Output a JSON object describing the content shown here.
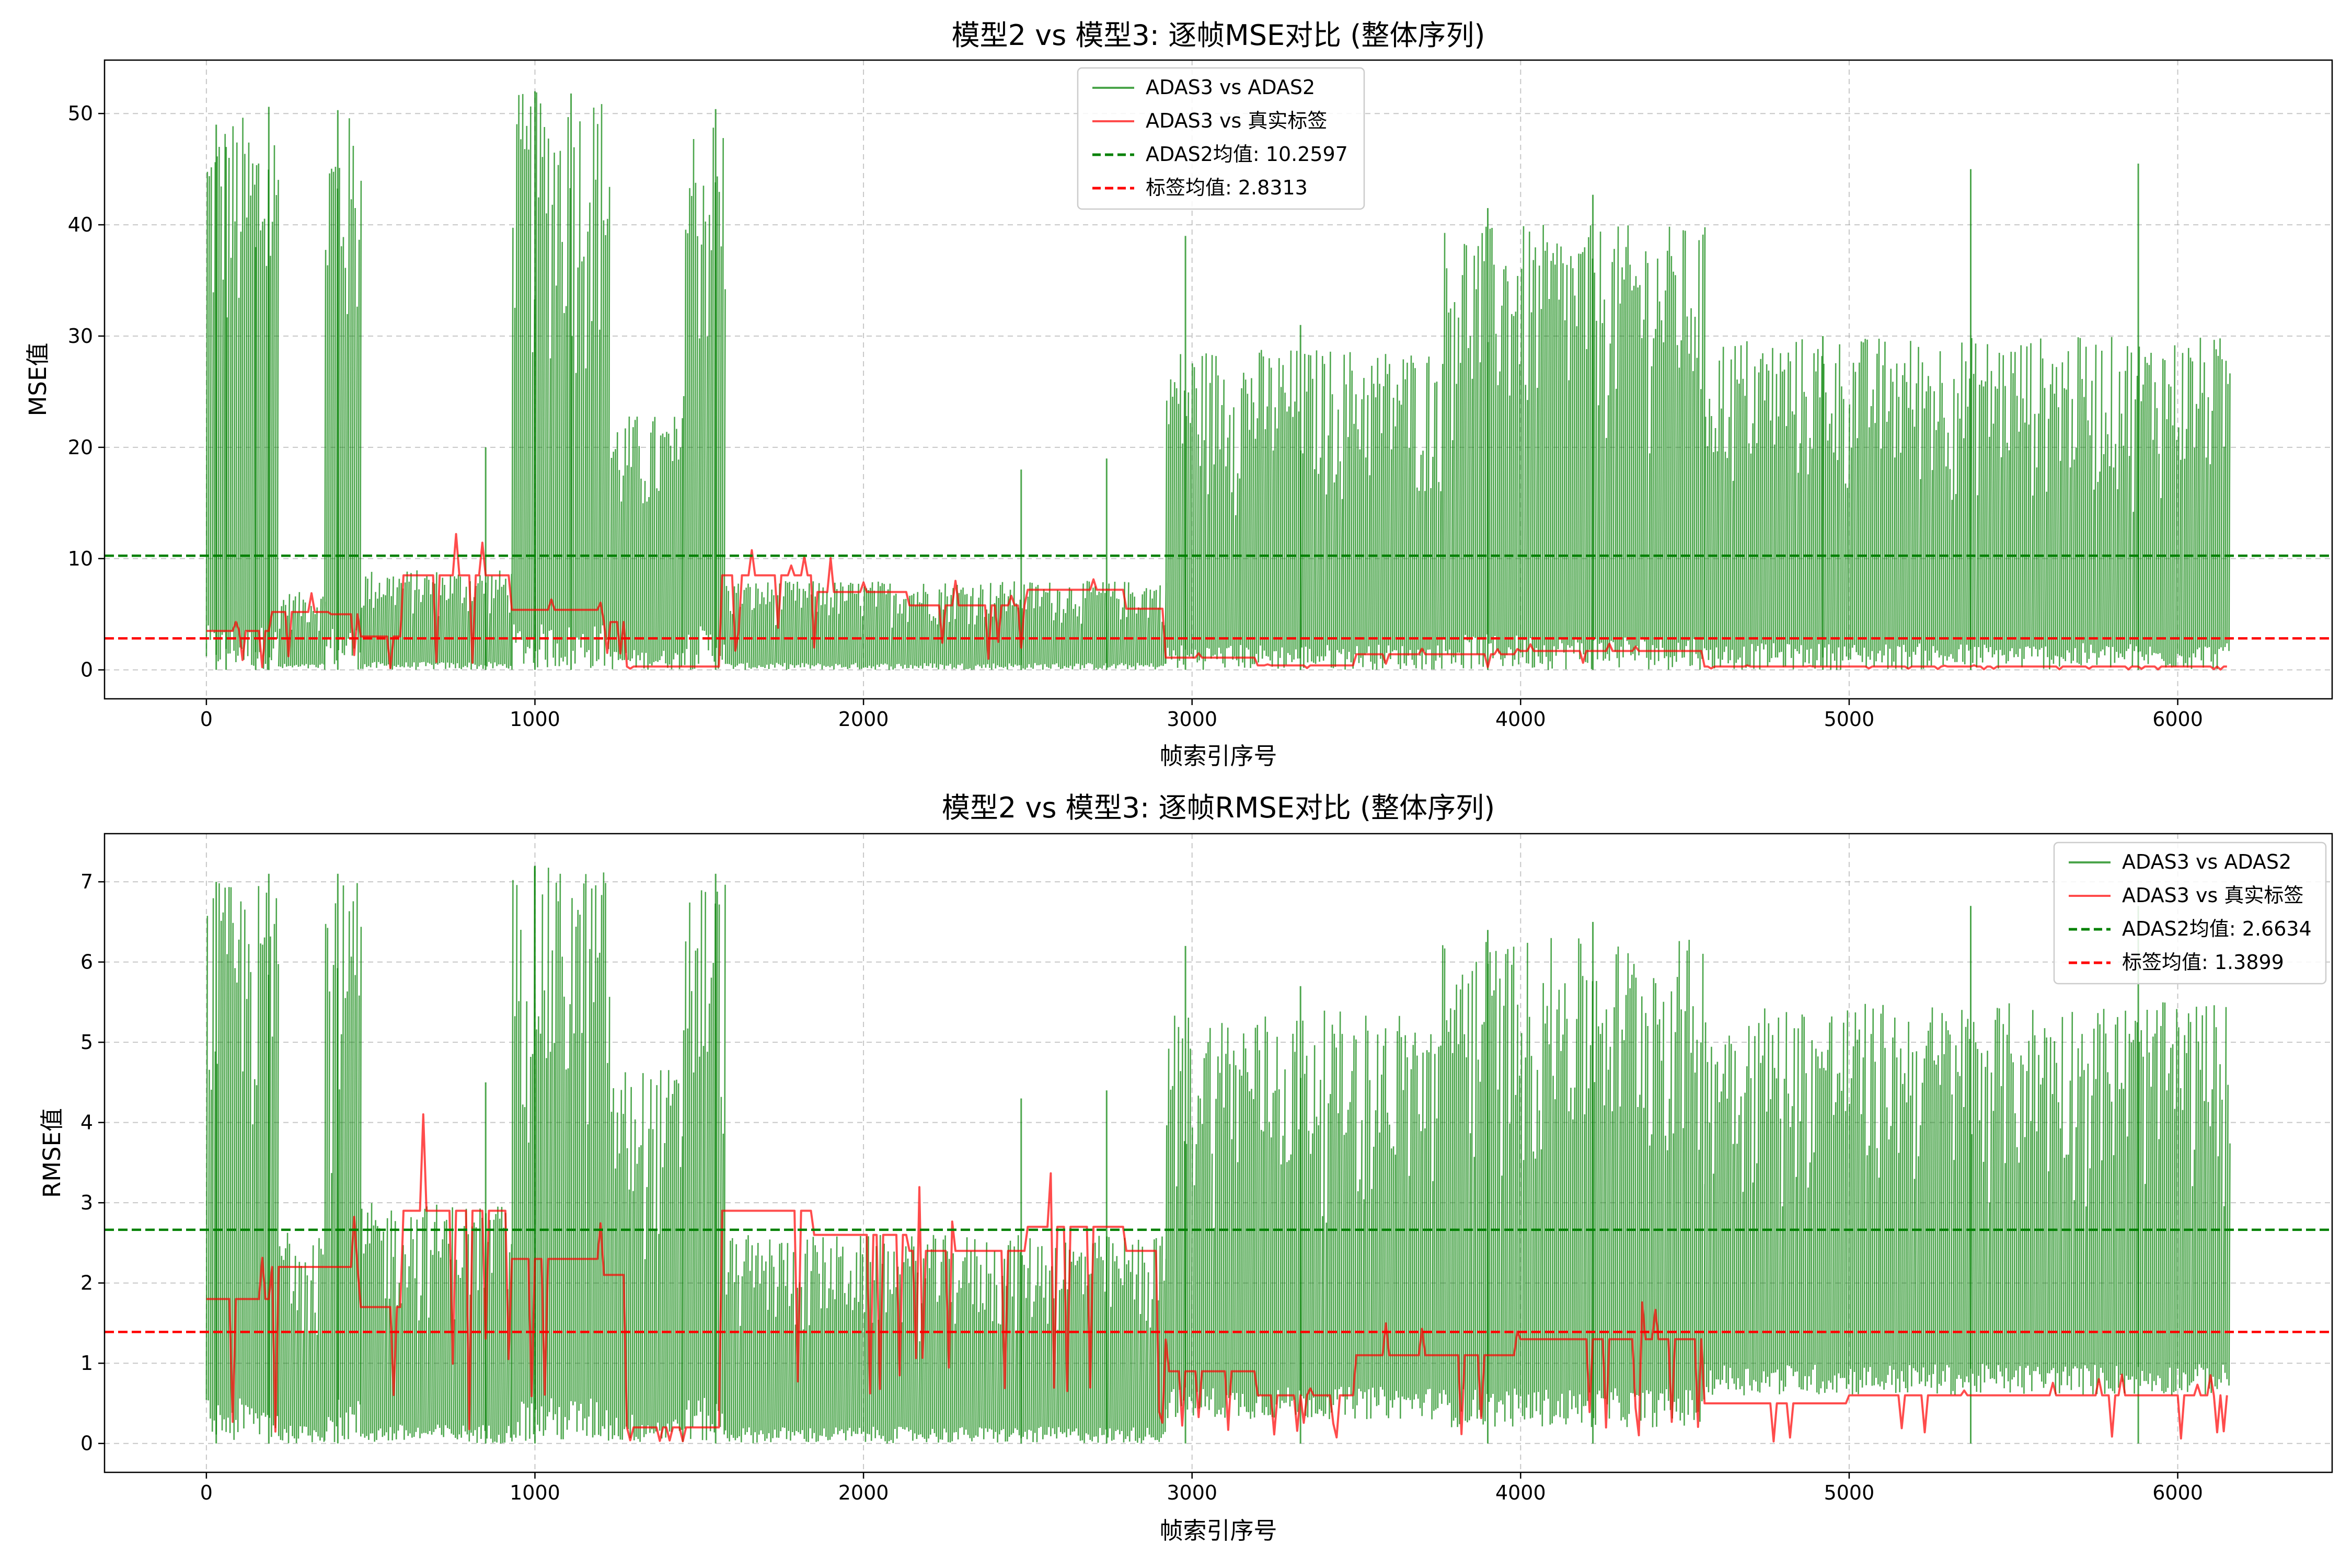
{
  "chart_data": [
    {
      "type": "line",
      "title": "模型2 vs 模型3: 逐帧MSE对比 (整体序列)",
      "xlabel": "帧索引序号",
      "ylabel": "MSE值",
      "xlim": [
        -310,
        6470
      ],
      "ylim": [
        -2.6,
        54.8
      ],
      "xticks": [
        0,
        1000,
        2000,
        3000,
        4000,
        5000,
        6000
      ],
      "yticks": [
        0,
        10,
        20,
        30,
        40,
        50
      ],
      "grid": true,
      "legend_position": "top-center",
      "series": [
        {
          "name": "ADAS3 vs ADAS2",
          "color": "#008000",
          "segments": [
            {
              "x_start": 0,
              "x_end": 220,
              "min": 0,
              "max": 50
            },
            {
              "x_start": 220,
              "x_end": 360,
              "min": 0,
              "max": 7
            },
            {
              "x_start": 360,
              "x_end": 470,
              "min": 0,
              "max": 50
            },
            {
              "x_start": 470,
              "x_end": 930,
              "min": 0,
              "max": 9
            },
            {
              "x_start": 930,
              "x_end": 1230,
              "min": 0,
              "max": 52
            },
            {
              "x_start": 1230,
              "x_end": 1450,
              "min": 0,
              "max": 23
            },
            {
              "x_start": 1450,
              "x_end": 1580,
              "min": 0,
              "max": 50
            },
            {
              "x_start": 1580,
              "x_end": 2920,
              "min": 0,
              "max": 8
            },
            {
              "x_start": 2920,
              "x_end": 3760,
              "min": 0,
              "max": 29
            },
            {
              "x_start": 3760,
              "x_end": 4560,
              "min": 0,
              "max": 40
            },
            {
              "x_start": 4560,
              "x_end": 6160,
              "min": 0,
              "max": 30
            }
          ],
          "spikes": [
            [
              30,
              49
            ],
            [
              60,
              47
            ],
            [
              150,
              38
            ],
            [
              190,
              50.6
            ],
            [
              400,
              50.3
            ],
            [
              850,
              20
            ],
            [
              1000,
              52
            ],
            [
              1110,
              51.8
            ],
            [
              1550,
              50.4
            ],
            [
              2480,
              18
            ],
            [
              2740,
              19
            ],
            [
              2980,
              39
            ],
            [
              3330,
              31
            ],
            [
              3900,
              41.5
            ],
            [
              4220,
              42.7
            ],
            [
              4920,
              30
            ],
            [
              5370,
              45
            ],
            [
              5880,
              45.5
            ]
          ]
        },
        {
          "name": "ADAS3 vs 真实标签",
          "color": "#ff0000",
          "levels": [
            [
              0,
              3.5
            ],
            [
              200,
              5.2
            ],
            [
              380,
              5.0
            ],
            [
              470,
              3.0
            ],
            [
              600,
              8.5
            ],
            [
              930,
              5.4
            ],
            [
              1200,
              4.3
            ],
            [
              1280,
              0.3
            ],
            [
              1570,
              8.5
            ],
            [
              1850,
              7.0
            ],
            [
              2140,
              5.8
            ],
            [
              2500,
              7.2
            ],
            [
              2800,
              5.5
            ],
            [
              2920,
              1.1
            ],
            [
              3200,
              0.4
            ],
            [
              3500,
              1.4
            ],
            [
              4000,
              1.7
            ],
            [
              4560,
              0.3
            ],
            [
              5000,
              0.3
            ],
            [
              6160,
              0.3
            ]
          ]
        },
        {
          "name": "ADAS2均值: 10.2597",
          "color": "#008000",
          "dashed": true,
          "value": 10.2597
        },
        {
          "name": "标签均值: 2.8313",
          "color": "#ff0000",
          "dashed": true,
          "value": 2.8313
        }
      ]
    },
    {
      "type": "line",
      "title": "模型2 vs 模型3: 逐帧RMSE对比 (整体序列)",
      "xlabel": "帧索引序号",
      "ylabel": "RMSE值",
      "xlim": [
        -310,
        6470
      ],
      "ylim": [
        -0.36,
        7.6
      ],
      "xticks": [
        0,
        1000,
        2000,
        3000,
        4000,
        5000,
        6000
      ],
      "yticks": [
        0,
        1,
        2,
        3,
        4,
        5,
        6,
        7
      ],
      "grid": true,
      "legend_position": "top-right",
      "series": [
        {
          "name": "ADAS3 vs ADAS2",
          "color": "#008000",
          "segments": [
            {
              "x_start": 0,
              "x_end": 220,
              "min": 0,
              "max": 7.0
            },
            {
              "x_start": 220,
              "x_end": 360,
              "min": 0,
              "max": 2.8
            },
            {
              "x_start": 360,
              "x_end": 470,
              "min": 0,
              "max": 7.0
            },
            {
              "x_start": 470,
              "x_end": 930,
              "min": 0,
              "max": 3.0
            },
            {
              "x_start": 930,
              "x_end": 1230,
              "min": 0,
              "max": 7.2
            },
            {
              "x_start": 1230,
              "x_end": 1450,
              "min": 0,
              "max": 4.7
            },
            {
              "x_start": 1450,
              "x_end": 1580,
              "min": 0,
              "max": 7.1
            },
            {
              "x_start": 1580,
              "x_end": 2920,
              "min": 0,
              "max": 2.6
            },
            {
              "x_start": 2920,
              "x_end": 3760,
              "min": 0.3,
              "max": 5.4
            },
            {
              "x_start": 3760,
              "x_end": 4560,
              "min": 0.2,
              "max": 6.3
            },
            {
              "x_start": 4560,
              "x_end": 6160,
              "min": 0.6,
              "max": 5.5
            }
          ],
          "spikes": [
            [
              30,
              7.0
            ],
            [
              190,
              7.1
            ],
            [
              400,
              7.1
            ],
            [
              850,
              4.5
            ],
            [
              1000,
              7.2
            ],
            [
              1550,
              7.1
            ],
            [
              2480,
              4.3
            ],
            [
              2740,
              4.4
            ],
            [
              2980,
              6.2
            ],
            [
              3330,
              5.7
            ],
            [
              3900,
              6.4
            ],
            [
              4220,
              6.5
            ],
            [
              5370,
              6.7
            ],
            [
              5880,
              6.7
            ]
          ]
        },
        {
          "name": "ADAS3 vs 真实标签",
          "color": "#ff0000",
          "levels": [
            [
              0,
              1.8
            ],
            [
              200,
              2.2
            ],
            [
              380,
              2.2
            ],
            [
              470,
              1.7
            ],
            [
              600,
              2.9
            ],
            [
              930,
              2.3
            ],
            [
              1200,
              2.1
            ],
            [
              1280,
              0.2
            ],
            [
              1570,
              2.9
            ],
            [
              1850,
              2.6
            ],
            [
              2140,
              2.4
            ],
            [
              2500,
              2.7
            ],
            [
              2800,
              2.4
            ],
            [
              2920,
              0.9
            ],
            [
              3200,
              0.6
            ],
            [
              3500,
              1.1
            ],
            [
              4000,
              1.3
            ],
            [
              4560,
              0.5
            ],
            [
              5000,
              0.6
            ],
            [
              6160,
              0.6
            ]
          ]
        },
        {
          "name": "ADAS2均值: 2.6634",
          "color": "#008000",
          "dashed": true,
          "value": 2.6634
        },
        {
          "name": "标签均值: 1.3899",
          "color": "#ff0000",
          "dashed": true,
          "value": 1.3899
        }
      ]
    }
  ]
}
